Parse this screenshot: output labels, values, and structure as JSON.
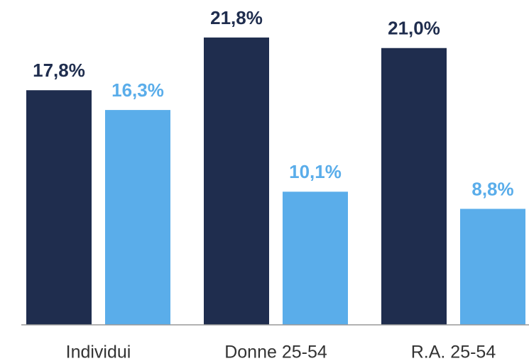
{
  "chart_data": {
    "type": "bar",
    "categories": [
      "Individui",
      "Donne 25-54",
      "R.A. 25-54"
    ],
    "series": [
      {
        "color": "#1f2d4e",
        "values": [
          17.8,
          21.8,
          21.0
        ],
        "value_labels": [
          "17,8%",
          "21,8%",
          "21,0%"
        ]
      },
      {
        "color": "#5aadea",
        "values": [
          16.3,
          10.1,
          8.8
        ],
        "value_labels": [
          "16,3%",
          "10,1%",
          "8,8%"
        ]
      }
    ],
    "ylim": [
      0,
      24
    ]
  }
}
